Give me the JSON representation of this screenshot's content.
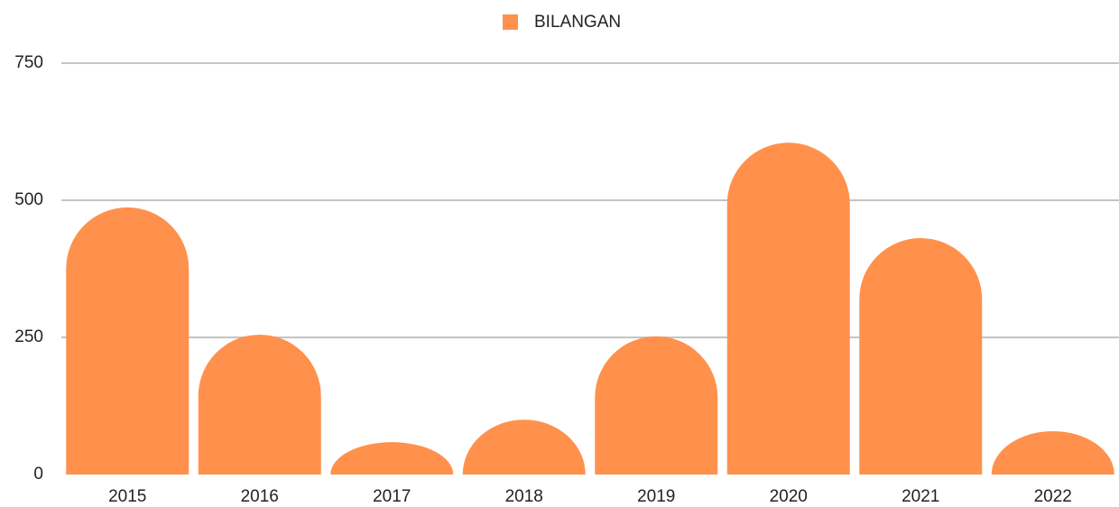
{
  "chart_data": {
    "type": "bar",
    "categories": [
      "2015",
      "2016",
      "2017",
      "2018",
      "2019",
      "2020",
      "2021",
      "2022"
    ],
    "series": [
      {
        "name": "BILANGAN",
        "color": "#ff914d",
        "values": [
          487,
          255,
          59,
          100,
          252,
          605,
          431,
          79
        ]
      }
    ],
    "ylim": [
      0,
      750
    ],
    "yticks": [
      0,
      250,
      500,
      750
    ],
    "grid": true,
    "legend": "top"
  }
}
